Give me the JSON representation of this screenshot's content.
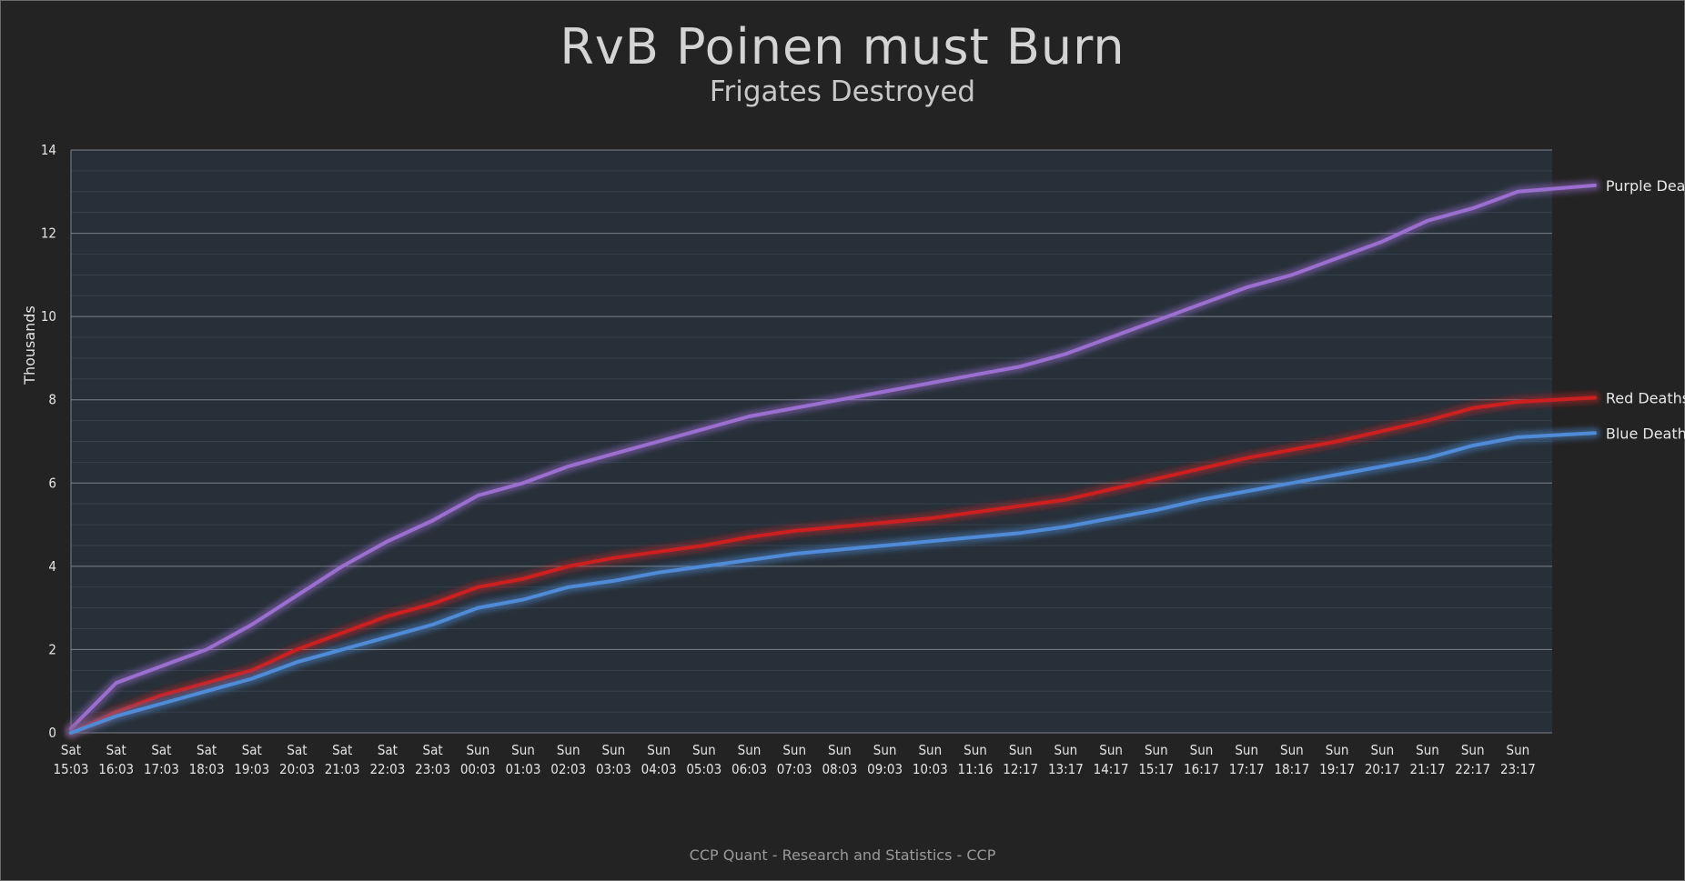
{
  "title": "RvB Poinen must Burn",
  "subtitle": "Frigates Destroyed",
  "footer": "CCP Quant - Research and Statistics - CCP",
  "colors": {
    "background": "#232323",
    "plot_background": "#273039",
    "purple": "#9b6fd0",
    "red": "#cc1f1f",
    "blue": "#4f8bd6"
  },
  "chart_data": {
    "type": "line",
    "title": "RvB Poinen must Burn",
    "subtitle": "Frigates Destroyed",
    "ylabel": "Thousands",
    "xlabel": "",
    "ylim": [
      0,
      14
    ],
    "yticks": [
      0,
      2,
      4,
      6,
      8,
      10,
      12,
      14
    ],
    "grid": true,
    "legend": "line-end labels",
    "categories": [
      "Sat 15:03",
      "Sat 16:03",
      "Sat 17:03",
      "Sat 18:03",
      "Sat 19:03",
      "Sat 20:03",
      "Sat 21:03",
      "Sat 22:03",
      "Sat 23:03",
      "Sun 00:03",
      "Sun 01:03",
      "Sun 02:03",
      "Sun 03:03",
      "Sun 04:03",
      "Sun 05:03",
      "Sun 06:03",
      "Sun 07:03",
      "Sun 08:03",
      "Sun 09:03",
      "Sun 10:03",
      "Sun 11:16",
      "Sun 12:17",
      "Sun 13:17",
      "Sun 14:17",
      "Sun 15:17",
      "Sun 16:17",
      "Sun 17:17",
      "Sun 18:17",
      "Sun 19:17",
      "Sun 20:17",
      "Sun 21:17",
      "Sun 22:17",
      "Sun 23:17"
    ],
    "x_end": 33.7,
    "series": [
      {
        "name": "Purple Deaths",
        "color": "#9b6fd0",
        "values": [
          0.1,
          1.2,
          1.6,
          2.0,
          2.6,
          3.3,
          4.0,
          4.6,
          5.1,
          5.7,
          6.0,
          6.4,
          6.7,
          7.0,
          7.3,
          7.6,
          7.8,
          8.0,
          8.2,
          8.4,
          8.6,
          8.8,
          9.1,
          9.5,
          9.9,
          10.3,
          10.7,
          11.0,
          11.4,
          11.8,
          12.3,
          12.6,
          13.0
        ],
        "end_value": 13.15
      },
      {
        "name": "Red Deaths",
        "color": "#cc1f1f",
        "values": [
          0.0,
          0.5,
          0.9,
          1.2,
          1.5,
          2.0,
          2.4,
          2.8,
          3.1,
          3.5,
          3.7,
          4.0,
          4.2,
          4.35,
          4.5,
          4.7,
          4.85,
          4.95,
          5.05,
          5.15,
          5.3,
          5.45,
          5.6,
          5.85,
          6.1,
          6.35,
          6.6,
          6.8,
          7.0,
          7.25,
          7.5,
          7.8,
          7.95
        ],
        "end_value": 8.05
      },
      {
        "name": "Blue Deaths",
        "color": "#4f8bd6",
        "values": [
          0.0,
          0.4,
          0.7,
          1.0,
          1.3,
          1.7,
          2.0,
          2.3,
          2.6,
          3.0,
          3.2,
          3.5,
          3.65,
          3.85,
          4.0,
          4.15,
          4.3,
          4.4,
          4.5,
          4.6,
          4.7,
          4.8,
          4.95,
          5.15,
          5.35,
          5.6,
          5.8,
          6.0,
          6.2,
          6.4,
          6.6,
          6.9,
          7.1
        ],
        "end_value": 7.2
      }
    ]
  }
}
